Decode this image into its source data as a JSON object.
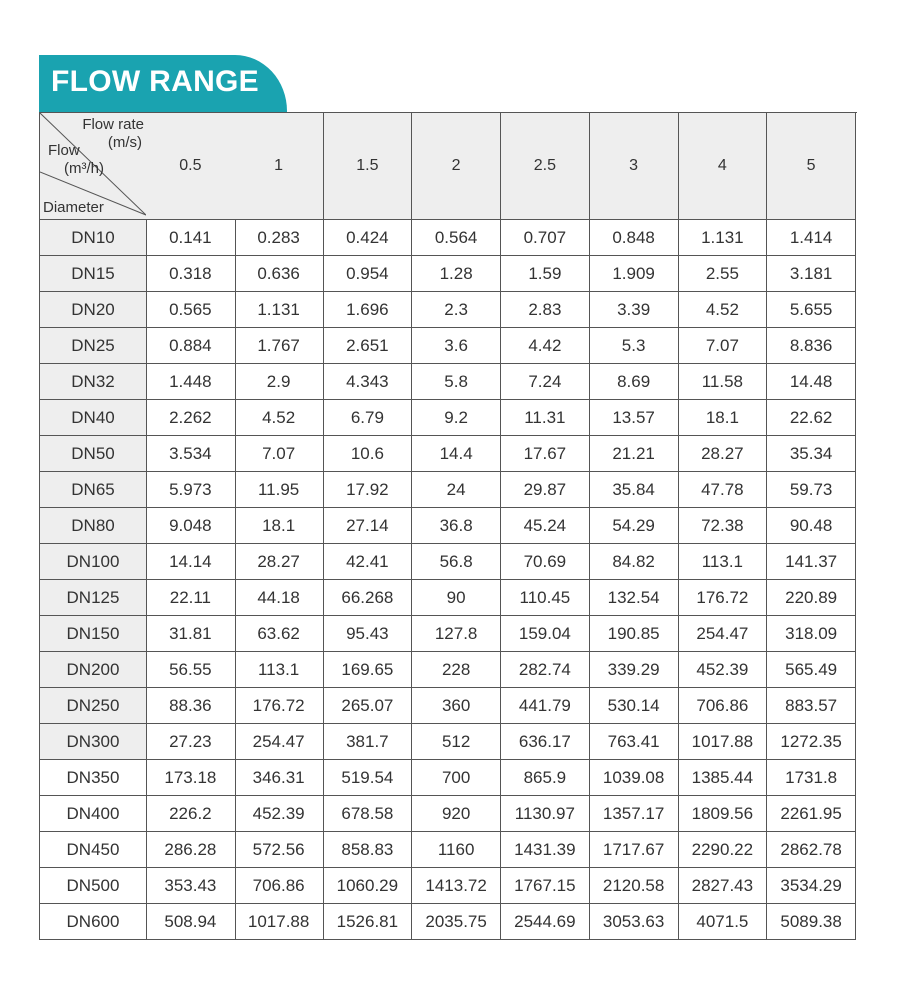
{
  "title": "FLOW RANGE",
  "table": {
    "corner": {
      "flow_rate": "Flow rate",
      "flow_rate_unit": "(m/s)",
      "flow": "Flow",
      "flow_unit": "(m³/h)",
      "diameter": "Diameter"
    },
    "columns": [
      "0.5",
      "1",
      "1.5",
      "2",
      "2.5",
      "3",
      "4",
      "5"
    ],
    "rows": [
      {
        "label": "DN10",
        "values": [
          "0.141",
          "0.283",
          "0.424",
          "0.564",
          "0.707",
          "0.848",
          "1.131",
          "1.414"
        ]
      },
      {
        "label": "DN15",
        "values": [
          "0.318",
          "0.636",
          "0.954",
          "1.28",
          "1.59",
          "1.909",
          "2.55",
          "3.181"
        ]
      },
      {
        "label": "DN20",
        "values": [
          "0.565",
          "1.131",
          "1.696",
          "2.3",
          "2.83",
          "3.39",
          "4.52",
          "5.655"
        ]
      },
      {
        "label": "DN25",
        "values": [
          "0.884",
          "1.767",
          "2.651",
          "3.6",
          "4.42",
          "5.3",
          "7.07",
          "8.836"
        ]
      },
      {
        "label": "DN32",
        "values": [
          "1.448",
          "2.9",
          "4.343",
          "5.8",
          "7.24",
          "8.69",
          "11.58",
          "14.48"
        ]
      },
      {
        "label": "DN40",
        "values": [
          "2.262",
          "4.52",
          "6.79",
          "9.2",
          "11.31",
          "13.57",
          "18.1",
          "22.62"
        ]
      },
      {
        "label": "DN50",
        "values": [
          "3.534",
          "7.07",
          "10.6",
          "14.4",
          "17.67",
          "21.21",
          "28.27",
          "35.34"
        ]
      },
      {
        "label": "DN65",
        "values": [
          "5.973",
          "11.95",
          "17.92",
          "24",
          "29.87",
          "35.84",
          "47.78",
          "59.73"
        ]
      },
      {
        "label": "DN80",
        "values": [
          "9.048",
          "18.1",
          "27.14",
          "36.8",
          "45.24",
          "54.29",
          "72.38",
          "90.48"
        ]
      },
      {
        "label": "DN100",
        "values": [
          "14.14",
          "28.27",
          "42.41",
          "56.8",
          "70.69",
          "84.82",
          "113.1",
          "141.37"
        ]
      },
      {
        "label": "DN125",
        "values": [
          "22.11",
          "44.18",
          "66.268",
          "90",
          "110.45",
          "132.54",
          "176.72",
          "220.89"
        ]
      },
      {
        "label": "DN150",
        "values": [
          "31.81",
          "63.62",
          "95.43",
          "127.8",
          "159.04",
          "190.85",
          "254.47",
          "318.09"
        ]
      },
      {
        "label": "DN200",
        "values": [
          "56.55",
          "113.1",
          "169.65",
          "228",
          "282.74",
          "339.29",
          "452.39",
          "565.49"
        ]
      },
      {
        "label": "DN250",
        "values": [
          "88.36",
          "176.72",
          "265.07",
          "360",
          "441.79",
          "530.14",
          "706.86",
          "883.57"
        ]
      },
      {
        "label": "DN300",
        "values": [
          "27.23",
          "254.47",
          "381.7",
          "512",
          "636.17",
          "763.41",
          "1017.88",
          "1272.35"
        ]
      },
      {
        "label": "DN350",
        "values": [
          "173.18",
          "346.31",
          "519.54",
          "700",
          "865.9",
          "1039.08",
          "1385.44",
          "1731.8"
        ]
      },
      {
        "label": "DN400",
        "values": [
          "226.2",
          "452.39",
          "678.58",
          "920",
          "1130.97",
          "1357.17",
          "1809.56",
          "2261.95"
        ]
      },
      {
        "label": "DN450",
        "values": [
          "286.28",
          "572.56",
          "858.83",
          "1160",
          "1431.39",
          "1717.67",
          "2290.22",
          "2862.78"
        ]
      },
      {
        "label": "DN500",
        "values": [
          "353.43",
          "706.86",
          "1060.29",
          "1413.72",
          "1767.15",
          "2120.58",
          "2827.43",
          "3534.29"
        ]
      },
      {
        "label": "DN600",
        "values": [
          "508.94",
          "1017.88",
          "1526.81",
          "2035.75",
          "2544.69",
          "3053.63",
          "4071.5",
          "5089.38"
        ]
      }
    ]
  }
}
